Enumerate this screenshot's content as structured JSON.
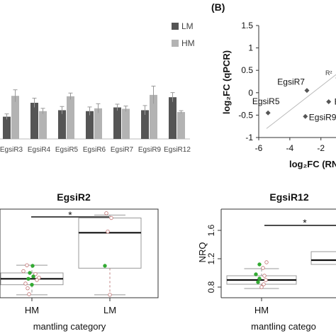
{
  "chart_data": [
    {
      "type": "bar",
      "panel": "A",
      "categories": [
        "EgsiR3",
        "EgsiR4",
        "EgsiR5",
        "EgsiR6",
        "EgsiR7",
        "EgsiR9",
        "EgsiR12"
      ],
      "series": [
        {
          "name": "LM",
          "color": "#555555",
          "values": [
            0.48,
            0.78,
            0.62,
            0.6,
            0.68,
            0.62,
            0.9
          ],
          "err": [
            0.06,
            0.1,
            0.08,
            0.09,
            0.07,
            0.1,
            0.1
          ]
        },
        {
          "name": "HM",
          "color": "#b3b3b3",
          "values": [
            0.93,
            0.6,
            0.92,
            0.66,
            0.65,
            0.95,
            0.58
          ],
          "err": [
            0.13,
            0.06,
            0.07,
            0.1,
            0.06,
            0.19,
            0.03
          ]
        }
      ],
      "ylim": [
        0,
        2.6
      ],
      "legend_position": "top-right",
      "grid": false
    },
    {
      "type": "scatter",
      "panel": "B",
      "panel_label": "(B)",
      "ylabel": "log₂FC (qPCR)",
      "xlabel": "log₂FC (RN",
      "xlim": [
        -6,
        -0.3
      ],
      "ylim": [
        -1,
        1.5
      ],
      "xticks": [
        "-6",
        "-4",
        "-2"
      ],
      "yticks": [
        "1.5",
        "1",
        "0.5",
        "0",
        "-0.5",
        "-1"
      ],
      "points": [
        {
          "label": "EgsiR5",
          "x": -5.4,
          "y": -0.45
        },
        {
          "label": "EgsiR7",
          "x": -2.9,
          "y": 0.05
        },
        {
          "label": "EgsiR9",
          "x": -3.0,
          "y": -0.53
        },
        {
          "label": "Eg",
          "x": -1.5,
          "y": -0.2
        },
        {
          "label": "",
          "x": -0.9,
          "y": 0.33
        }
      ],
      "annotation": "R²",
      "trend_line": [
        [
          -5.5,
          -0.8
        ],
        [
          -0.3,
          0.6
        ]
      ],
      "grid": false
    },
    {
      "type": "box",
      "panel": "C",
      "title": "EgsiR2",
      "xlabel": "mantling category",
      "categories": [
        "HM",
        "LM"
      ],
      "boxes": [
        {
          "name": "HM",
          "min": 0.55,
          "q1": 0.72,
          "median": 0.82,
          "q3": 0.92,
          "max": 1.05
        },
        {
          "name": "LM",
          "min": 0.55,
          "q1": 1.0,
          "median": 1.6,
          "q3": 1.85,
          "max": 1.9
        }
      ],
      "ylim": [
        0.5,
        2.0
      ],
      "significance": "*"
    },
    {
      "type": "box",
      "panel": "D",
      "title": "EgsiR12",
      "ylabel": "NRQ",
      "xlabel": "mantling catego",
      "categories": [
        "HM",
        "LM"
      ],
      "yticks": [
        "0.8",
        "1.2",
        "1.6"
      ],
      "boxes": [
        {
          "name": "HM",
          "min": 0.78,
          "q1": 0.84,
          "median": 0.9,
          "q3": 0.96,
          "max": 1.06
        },
        {
          "name": "LM",
          "min": 1.12,
          "q1": 1.12,
          "median": 1.18,
          "q3": 1.3,
          "max": 1.3
        }
      ],
      "ylim": [
        0.65,
        1.9
      ],
      "significance": "*"
    }
  ]
}
